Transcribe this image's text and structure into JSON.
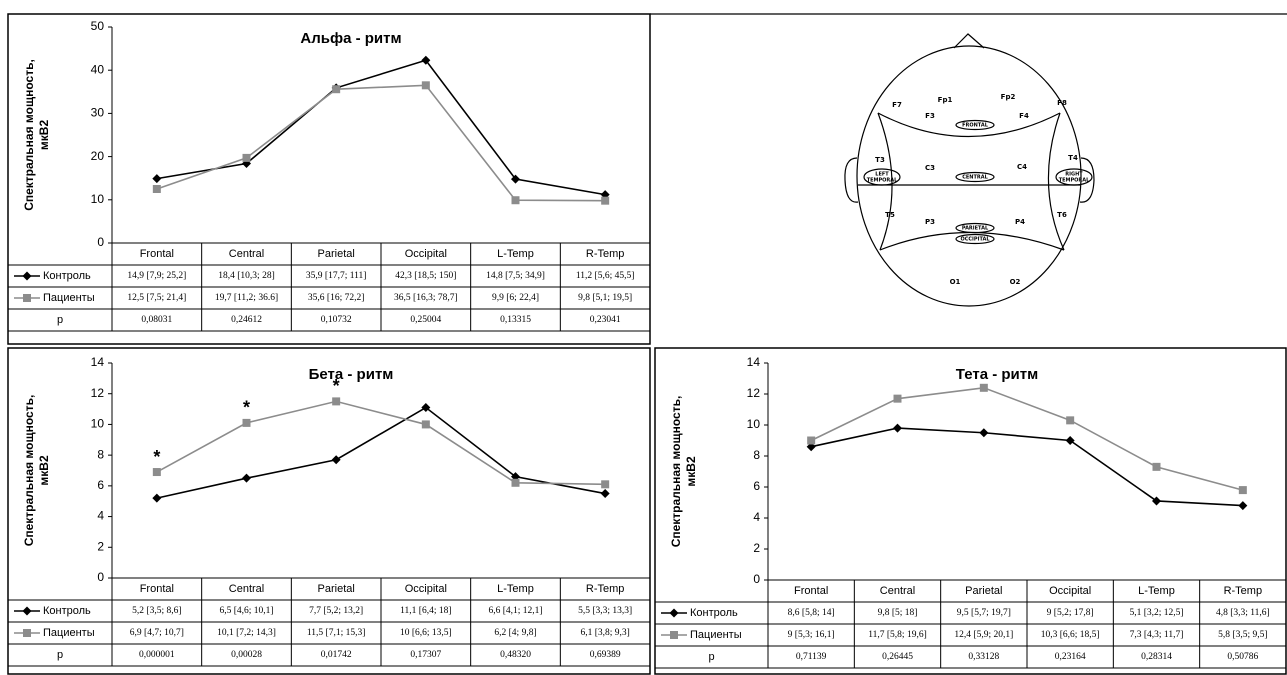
{
  "chart_data": [
    {
      "type": "line",
      "title": "Альфа - ритм",
      "ylabel": [
        "Спектральная мощность,",
        "мкВ2"
      ],
      "categories": [
        "Frontal",
        "Central",
        "Parietal",
        "Occipital",
        "L-Temp",
        "R-Temp"
      ],
      "ylim": [
        0,
        50
      ],
      "yticks": [
        0,
        10,
        20,
        30,
        40,
        50
      ],
      "series": [
        {
          "name": "Контроль",
          "color": "#000000",
          "marker": "diamond",
          "values": [
            14.9,
            18.4,
            35.9,
            42.3,
            14.8,
            11.2
          ],
          "value_labels": [
            "14,9 [7,9; 25,2]",
            "18,4 [10,3; 28]",
            "35,9 [17,7; 111]",
            "42,3 [18,5; 150]",
            "14,8 [7,5; 34,9]",
            "11,2 [5,6; 45,5]"
          ]
        },
        {
          "name": "Пациенты",
          "color": "#8c8c8c",
          "marker": "square",
          "values": [
            12.5,
            19.7,
            35.6,
            36.5,
            9.9,
            9.8
          ],
          "value_labels": [
            "12,5 [7,5; 21,4]",
            "19,7 [11,2; 36.6]",
            "35,6 [16; 72,2]",
            "36,5 [16,3; 78,7]",
            "9,9 [6; 22,4]",
            "9,8 [5,1; 19,5]"
          ]
        }
      ],
      "p_row": {
        "label": "p",
        "cells": [
          "0,08031",
          "0,24612",
          "0,10732",
          "0,25004",
          "0,13315",
          "0,23041"
        ]
      },
      "annotations": []
    },
    {
      "type": "line",
      "title": "Бета - ритм",
      "ylabel": [
        "Спектральная мощность,",
        "мкВ2"
      ],
      "categories": [
        "Frontal",
        "Central",
        "Parietal",
        "Occipital",
        "L-Temp",
        "R-Temp"
      ],
      "ylim": [
        0,
        14
      ],
      "yticks": [
        0,
        2,
        4,
        6,
        8,
        10,
        12,
        14
      ],
      "series": [
        {
          "name": "Контроль",
          "color": "#000000",
          "marker": "diamond",
          "values": [
            5.2,
            6.5,
            7.7,
            11.1,
            6.6,
            5.5
          ],
          "value_labels": [
            "5,2 [3,5; 8,6]",
            "6,5 [4,6; 10,1]",
            "7,7 [5,2; 13,2]",
            "11,1 [6,4; 18]",
            "6,6 [4,1; 12,1]",
            "5,5 [3,3; 13,3]"
          ]
        },
        {
          "name": "Пациенты",
          "color": "#8c8c8c",
          "marker": "square",
          "values": [
            6.9,
            10.1,
            11.5,
            10,
            6.2,
            6.1
          ],
          "value_labels": [
            "6,9 [4,7; 10,7]",
            "10,1 [7,2; 14,3]",
            "11,5 [7,1; 15,3]",
            "10 [6,6; 13,5]",
            "6,2 [4; 9,8]",
            "6,1 [3,8; 9,3]"
          ]
        }
      ],
      "p_row": {
        "label": "p",
        "cells": [
          "0,000001",
          "0,00028",
          "0,01742",
          "0,17307",
          "0,48320",
          "0,69389"
        ]
      },
      "annotations": [
        {
          "text": "*",
          "x": "Frontal"
        },
        {
          "text": "*",
          "x": "Central"
        },
        {
          "text": "*",
          "x": "Parietal"
        }
      ]
    },
    {
      "type": "line",
      "title": "Тета - ритм",
      "ylabel": [
        "Спектральная мощность,",
        "мкВ2"
      ],
      "categories": [
        "Frontal",
        "Central",
        "Parietal",
        "Occipital",
        "L-Temp",
        "R-Temp"
      ],
      "ylim": [
        0,
        14
      ],
      "yticks": [
        0,
        2,
        4,
        6,
        8,
        10,
        12,
        14
      ],
      "series": [
        {
          "name": "Контроль",
          "color": "#000000",
          "marker": "diamond",
          "values": [
            8.6,
            9.8,
            9.5,
            9,
            5.1,
            4.8
          ],
          "value_labels": [
            "8,6 [5,8; 14]",
            "9,8 [5; 18]",
            "9,5 [5,7; 19,7]",
            "9 [5,2; 17,8]",
            "5,1 [3,2; 12,5]",
            "4,8 [3,3; 11,6]"
          ]
        },
        {
          "name": "Пациенты",
          "color": "#8c8c8c",
          "marker": "square",
          "values": [
            9,
            11.7,
            12.4,
            10.3,
            7.3,
            5.8
          ],
          "value_labels": [
            "9 [5,3; 16,1]",
            "11,7 [5,8; 19,6]",
            "12,4 [5,9; 20,1]",
            "10,3 [6,6; 18,5]",
            "7,3 [4,3; 11,7]",
            "5,8 [3,5; 9,5]"
          ]
        }
      ],
      "p_row": {
        "label": "p",
        "cells": [
          "0,71139",
          "0,26445",
          "0,33128",
          "0,23164",
          "0,28314",
          "0,50786"
        ]
      },
      "annotations": []
    }
  ],
  "diagram": {
    "labels": [
      "Fp1",
      "Fp2",
      "F7",
      "F3",
      "F4",
      "F8",
      "FRONTAL",
      "T3",
      "C3",
      "C4",
      "T4",
      "LEFT",
      "TEMPORAL",
      "CENTRAL",
      "RIGHT",
      "TEMPORAL",
      "T5",
      "P3",
      "PARIETAL",
      "P4",
      "T6",
      "OCCIPITAL",
      "O1",
      "O2"
    ]
  }
}
